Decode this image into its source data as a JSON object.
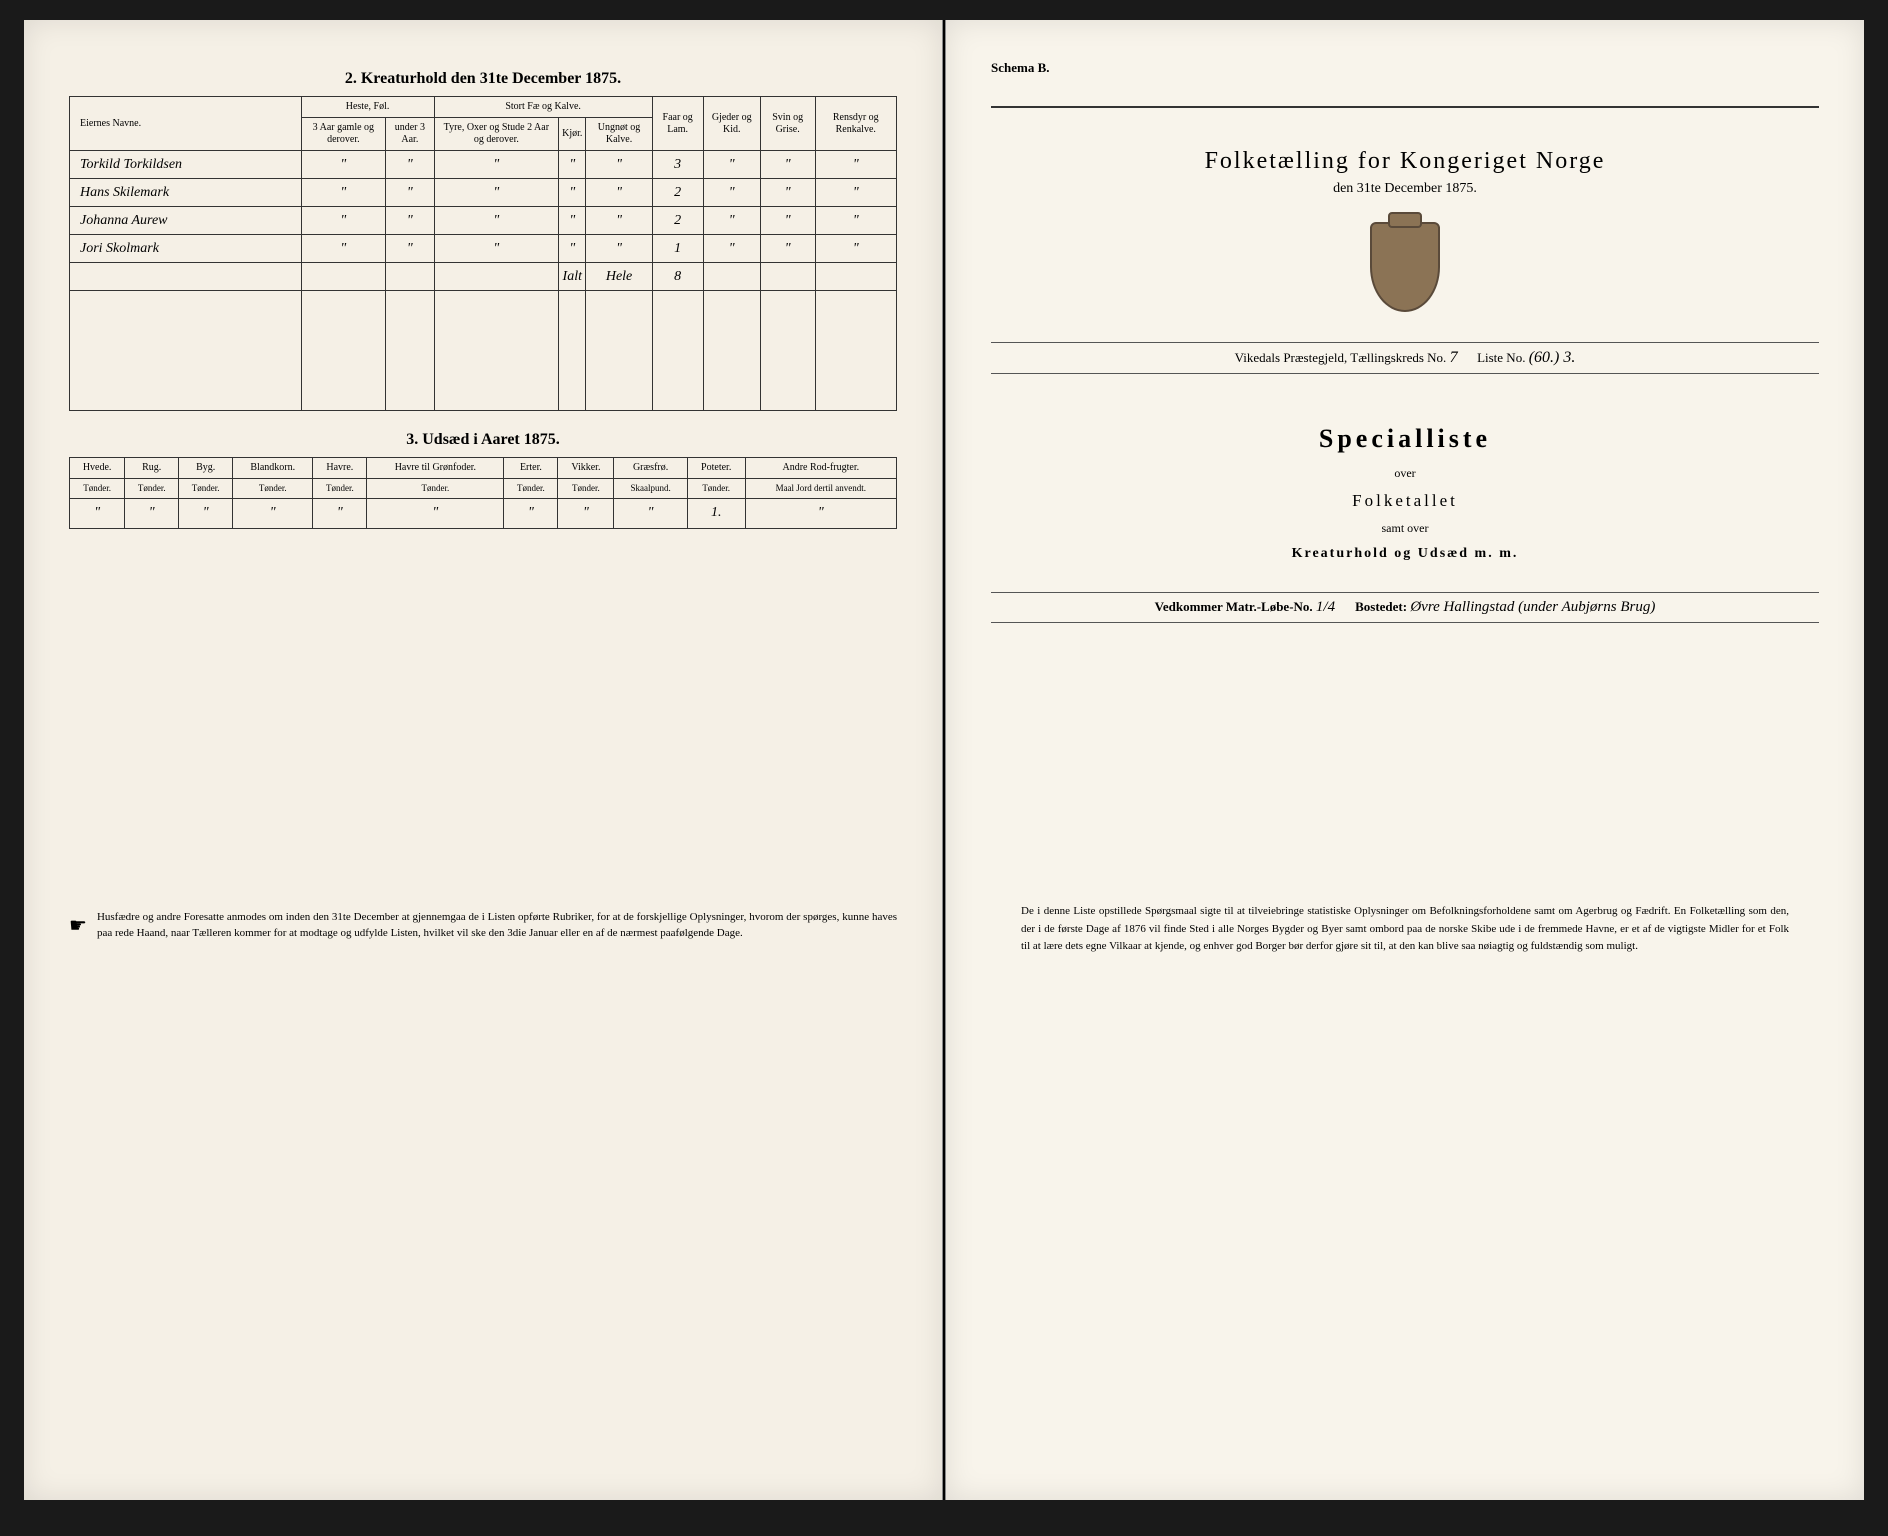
{
  "left": {
    "table2": {
      "title": "2.   Kreaturhold den 31te December 1875.",
      "col_name": "Eiernes Navne.",
      "group_heste": "Heste, Føl.",
      "group_stort": "Stort Fæ og Kalve.",
      "sub_heste1": "3 Aar gamle og derover.",
      "sub_heste2": "under 3 Aar.",
      "sub_stort1": "Tyre, Oxer og Stude 2 Aar og derover.",
      "sub_stort2": "Kjør.",
      "sub_stort3": "Ungnøt og Kalve.",
      "col_faar": "Faar og Lam.",
      "col_gjeder": "Gjeder og Kid.",
      "col_svin": "Svin og Grise.",
      "col_ren": "Rensdyr og Renkalve.",
      "rows": [
        {
          "name": "Torkild Torkildsen",
          "vals": [
            "\"",
            "\"",
            "\"",
            "\"",
            "\"",
            "3",
            "\"",
            "\"",
            "\""
          ]
        },
        {
          "name": "Hans Skilemark",
          "vals": [
            "\"",
            "\"",
            "\"",
            "\"",
            "\"",
            "2",
            "\"",
            "\"",
            "\""
          ]
        },
        {
          "name": "Johanna Aurew",
          "vals": [
            "\"",
            "\"",
            "\"",
            "\"",
            "\"",
            "2",
            "\"",
            "\"",
            "\""
          ]
        },
        {
          "name": "Jori Skolmark",
          "vals": [
            "\"",
            "\"",
            "\"",
            "\"",
            "\"",
            "1",
            "\"",
            "\"",
            "\""
          ]
        }
      ],
      "totals_label1": "Ialt",
      "totals_label2": "Hele",
      "totals_val": "8"
    },
    "table3": {
      "title": "3.   Udsæd i Aaret 1875.",
      "cols": [
        {
          "h": "Hvede.",
          "sub": "Tønder."
        },
        {
          "h": "Rug.",
          "sub": "Tønder."
        },
        {
          "h": "Byg.",
          "sub": "Tønder."
        },
        {
          "h": "Blandkorn.",
          "sub": "Tønder."
        },
        {
          "h": "Havre.",
          "sub": "Tønder."
        },
        {
          "h": "Havre til Grønfoder.",
          "sub": "Tønder."
        },
        {
          "h": "Erter.",
          "sub": "Tønder."
        },
        {
          "h": "Vikker.",
          "sub": "Tønder."
        },
        {
          "h": "Græsfrø.",
          "sub": "Skaalpund."
        },
        {
          "h": "Poteter.",
          "sub": "Tønder."
        },
        {
          "h": "Andre Rod-frugter.",
          "sub": "Maal Jord dertil anvendt."
        }
      ],
      "row": [
        "\"",
        "\"",
        "\"",
        "\"",
        "\"",
        "\"",
        "\"",
        "\"",
        "\"",
        "1.",
        "\""
      ]
    },
    "footnote": "Husfædre og andre Foresatte anmodes om inden den 31te December at gjennemgaa de i Listen opførte Rubriker, for at de forskjellige Oplysninger, hvorom der spørges, kunne haves paa rede Haand, naar Tælleren kommer for at modtage og udfylde Listen, hvilket vil ske den 3die Januar eller en af de nærmest paafølgende Dage."
  },
  "right": {
    "schema": "Schema B.",
    "main_title": "Folketælling for Kongeriget Norge",
    "subtitle": "den 31te December 1875.",
    "meta_prefix": "Vikedals Præstegjeld, Tællingskreds No.",
    "meta_kreds": "7",
    "meta_liste_label": "Liste No.",
    "meta_liste": "(60.) 3.",
    "special": "Specialliste",
    "over": "over",
    "folketallet": "Folketallet",
    "samt": "samt over",
    "kreatur": "Kreaturhold og Udsæd m. m.",
    "bostod_label1": "Vedkommer Matr.-Løbe-No.",
    "bostod_no": "1/4",
    "bostod_label2": "Bostedet:",
    "bostod_name": "Øvre Hallingstad (under Aubjørns Brug)",
    "footnote": "De i denne Liste opstillede Spørgsmaal sigte til at tilveiebringe statistiske Oplysninger om Befolkningsforholdene samt om Agerbrug og Fædrift. En Folketælling som den, der i de første Dage af 1876 vil finde Sted i alle Norges Bygder og Byer samt ombord paa de norske Skibe ude i de fremmede Havne, er et af de vigtigste Midler for et Folk til at lære dets egne Vilkaar at kjende, og enhver god Borger bør derfor gjøre sit til, at den kan blive saa nøiagtig og fuldstændig som muligt."
  }
}
